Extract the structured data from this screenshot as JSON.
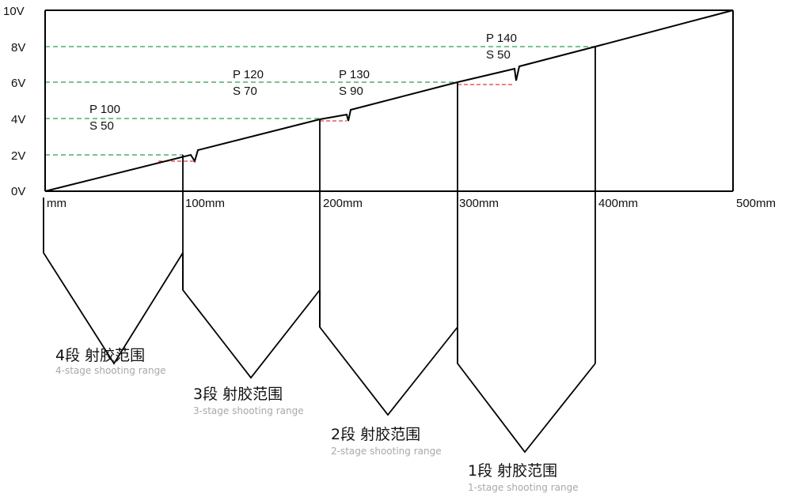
{
  "colors": {
    "axis": "#000000",
    "guide": "#2e9e4e",
    "drop": "#e0393b",
    "subtitle": "#a8a8a8"
  },
  "chart_data": {
    "type": "line",
    "y_ticks": [
      "10V",
      "8V",
      "6V",
      "4V",
      "2V",
      "0V"
    ],
    "x_ticks": [
      "mm",
      "100mm",
      "200mm",
      "300mm",
      "400mm",
      "500mm"
    ],
    "xlim": [
      0,
      500
    ],
    "ylim": [
      0,
      10
    ],
    "series": [
      {
        "points": [
          [
            0,
            0
          ],
          [
            500,
            10
          ]
        ]
      }
    ],
    "stage_markers": [
      {
        "P": "P 100",
        "S": "S 50"
      },
      {
        "P": "P 120",
        "S": "S 70"
      },
      {
        "P": "P 130",
        "S": "S 90"
      },
      {
        "P": "P 140",
        "S": "S 50"
      }
    ],
    "ranges": [
      {
        "cn": "4段 射胶范围",
        "en": "4-stage shooting range"
      },
      {
        "cn": "3段 射胶范围",
        "en": "3-stage shooting range"
      },
      {
        "cn": "2段 射胶范围",
        "en": "2-stage shooting range"
      },
      {
        "cn": "1段 射胶范围",
        "en": "1-stage shooting range"
      }
    ]
  }
}
